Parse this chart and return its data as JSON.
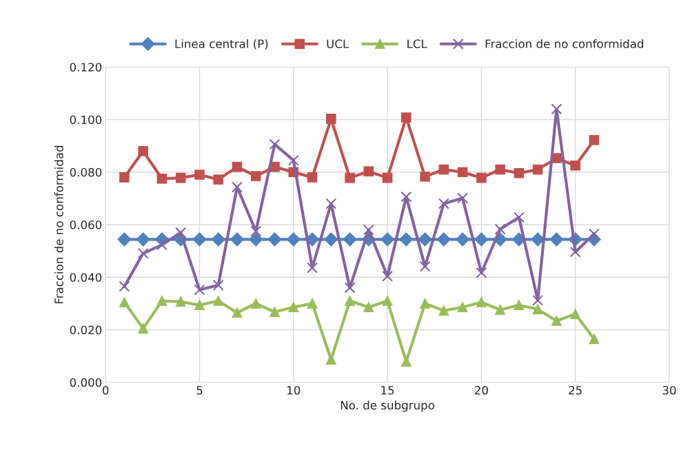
{
  "chart_data": {
    "type": "line",
    "xlabel": "No. de subgrupo",
    "ylabel": "Fraccion de no conformidad",
    "x": [
      1,
      2,
      3,
      4,
      5,
      6,
      7,
      8,
      9,
      10,
      11,
      12,
      13,
      14,
      15,
      16,
      17,
      18,
      19,
      20,
      21,
      22,
      23,
      24,
      25,
      26
    ],
    "series": [
      {
        "name": "Linea central (P)",
        "color": "#4f81bd",
        "marker": "diamond",
        "values": [
          0.0544,
          0.0544,
          0.0544,
          0.0544,
          0.0544,
          0.0544,
          0.0544,
          0.0544,
          0.0544,
          0.0544,
          0.0544,
          0.0544,
          0.0544,
          0.0544,
          0.0544,
          0.0544,
          0.0544,
          0.0544,
          0.0544,
          0.0544,
          0.0544,
          0.0544,
          0.0544,
          0.0544,
          0.0544,
          0.0544
        ]
      },
      {
        "name": "UCL",
        "color": "#c0504d",
        "marker": "square",
        "values": [
          0.078,
          0.088,
          0.0775,
          0.0778,
          0.079,
          0.0772,
          0.082,
          0.0785,
          0.082,
          0.08,
          0.078,
          0.1003,
          0.0778,
          0.0803,
          0.0778,
          0.1008,
          0.0783,
          0.081,
          0.08,
          0.0778,
          0.081,
          0.0796,
          0.081,
          0.0853,
          0.0825,
          0.0922
        ]
      },
      {
        "name": "LCL",
        "color": "#9bbb59",
        "marker": "triangle",
        "values": [
          0.0305,
          0.0205,
          0.031,
          0.0307,
          0.0294,
          0.031,
          0.0265,
          0.03,
          0.0268,
          0.0286,
          0.03,
          0.0087,
          0.031,
          0.0286,
          0.031,
          0.0079,
          0.03,
          0.0273,
          0.0286,
          0.0305,
          0.0276,
          0.0294,
          0.0278,
          0.0234,
          0.026,
          0.0165
        ]
      },
      {
        "name": "Fraccion de no conformidad",
        "color": "#8064a2",
        "marker": "cross",
        "values": [
          0.0365,
          0.0491,
          0.0523,
          0.057,
          0.0352,
          0.037,
          0.0743,
          0.0575,
          0.0906,
          0.0845,
          0.0436,
          0.068,
          0.036,
          0.058,
          0.0404,
          0.0706,
          0.0441,
          0.068,
          0.0701,
          0.0417,
          0.0583,
          0.0628,
          0.0312,
          0.104,
          0.0496,
          0.0565
        ]
      }
    ],
    "xlim": [
      0,
      30
    ],
    "xticks": [
      0,
      5,
      10,
      15,
      20,
      25,
      30
    ],
    "ylim": [
      0,
      0.12
    ],
    "yticks": [
      {
        "value": 0,
        "label": "0.000"
      },
      {
        "value": 0.02,
        "label": "0.020"
      },
      {
        "value": 0.04,
        "label": "0.040"
      },
      {
        "value": 0.06,
        "label": "0.060"
      },
      {
        "value": 0.08,
        "label": "0.080"
      },
      {
        "value": 0.1,
        "label": "0.100"
      },
      {
        "value": 0.12,
        "label": "0.120"
      }
    ],
    "grid": true,
    "legend": "top",
    "line_style": "solid"
  }
}
